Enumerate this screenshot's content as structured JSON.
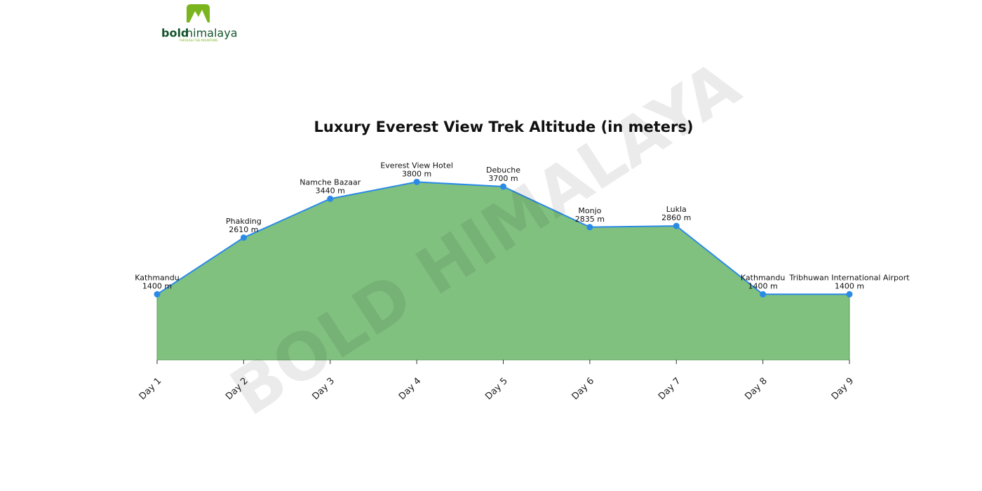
{
  "logo": {
    "brand_bold": "bold",
    "brand_rest": "himalaya",
    "tagline": "THROUGH THE MOUNTAINS"
  },
  "watermark": "BOLD HIMALAYA",
  "chart_data": {
    "type": "area",
    "title": "Luxury Everest View Trek Altitude (in meters)",
    "categories": [
      "Day 1",
      "Day 2",
      "Day 3",
      "Day 4",
      "Day 5",
      "Day 6",
      "Day 7",
      "Day 8",
      "Day 9"
    ],
    "values": [
      1400,
      2610,
      3440,
      3800,
      3700,
      2835,
      2860,
      1400,
      1400
    ],
    "value_labels": [
      "1400 m",
      "2610 m",
      "3440 m",
      "3800 m",
      "3700 m",
      "2835 m",
      "2860 m",
      "1400 m",
      "1400 m"
    ],
    "point_labels": [
      "Kathmandu",
      "Phakding",
      "Namche Bazaar",
      "Everest View Hotel",
      "Debuche",
      "Monjo",
      "Lukla",
      "Kathmandu",
      "Tribhuwan International Airport"
    ],
    "ylim": [
      0,
      4000
    ],
    "line_color": "#2b8ae6",
    "fill_color": "#80c17f"
  }
}
